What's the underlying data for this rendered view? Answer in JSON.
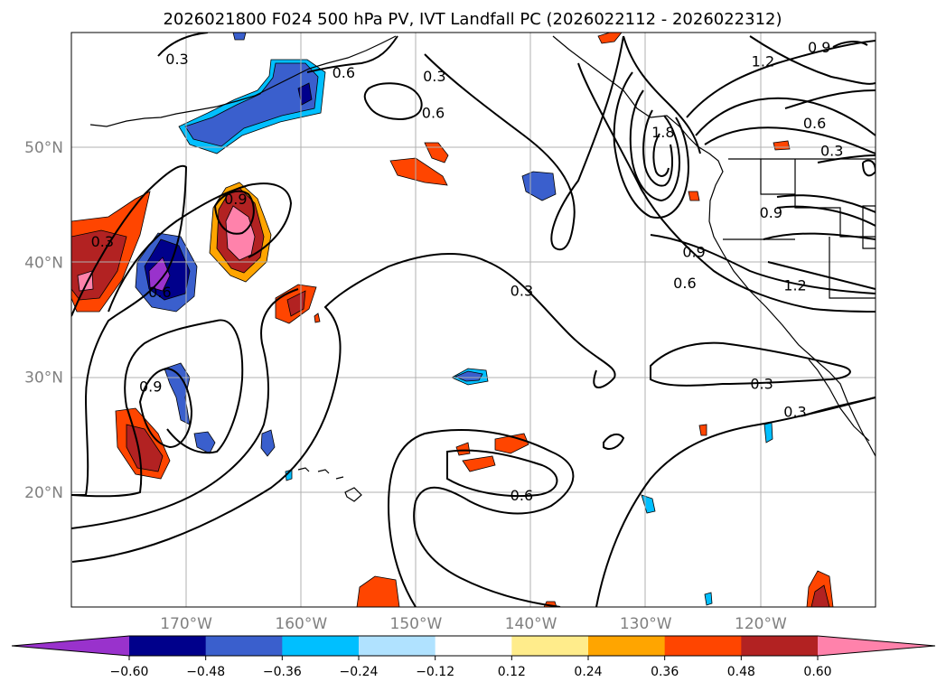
{
  "chart_data": {
    "type": "contour-map",
    "title": "2026021800 F024 500 hPa PV, IVT Landfall PC (2026022112 - 2026022312)",
    "xlim": [
      -180,
      -110
    ],
    "ylim": [
      10,
      60
    ],
    "x_ticks": [
      -170,
      -160,
      -150,
      -140,
      -130,
      -120
    ],
    "x_tick_labels": [
      "170°W",
      "160°W",
      "150°W",
      "140°W",
      "130°W",
      "120°W"
    ],
    "y_ticks": [
      20,
      30,
      40,
      50
    ],
    "y_tick_labels": [
      "20°N",
      "30°N",
      "40°N",
      "50°N"
    ],
    "grid": true,
    "contour_labels": [
      {
        "text": "0.3",
        "lon": -170.8,
        "lat": 57.7
      },
      {
        "text": "0.6",
        "lon": -156.3,
        "lat": 56.5
      },
      {
        "text": "0.3",
        "lon": -148.4,
        "lat": 56.2
      },
      {
        "text": "0.6",
        "lon": -148.5,
        "lat": 53.0
      },
      {
        "text": "1.8",
        "lon": -128.5,
        "lat": 51.3
      },
      {
        "text": "1.2",
        "lon": -119.8,
        "lat": 57.5
      },
      {
        "text": "0.9",
        "lon": -114.9,
        "lat": 58.7
      },
      {
        "text": "0.6",
        "lon": -115.3,
        "lat": 52.1
      },
      {
        "text": "0.3",
        "lon": -113.8,
        "lat": 49.7
      },
      {
        "text": "0.9",
        "lon": -119.1,
        "lat": 44.3
      },
      {
        "text": "0.9",
        "lon": -125.8,
        "lat": 40.9
      },
      {
        "text": "0.6",
        "lon": -126.6,
        "lat": 38.2
      },
      {
        "text": "1.2",
        "lon": -117.0,
        "lat": 38.0
      },
      {
        "text": "0.3",
        "lon": -140.8,
        "lat": 37.5
      },
      {
        "text": "0.3",
        "lon": -119.9,
        "lat": 29.4
      },
      {
        "text": "0.3",
        "lon": -117.0,
        "lat": 27.0
      },
      {
        "text": "0.6",
        "lon": -140.8,
        "lat": 19.7
      },
      {
        "text": "0.9",
        "lon": -165.7,
        "lat": 45.5
      },
      {
        "text": "0.3",
        "lon": -177.3,
        "lat": 41.8
      },
      {
        "text": "0.6",
        "lon": -172.3,
        "lat": 37.4
      },
      {
        "text": "0.9",
        "lon": -173.1,
        "lat": 29.2
      }
    ],
    "colorbar": {
      "orientation": "horizontal",
      "extend": "both",
      "levels": [
        -0.6,
        -0.48,
        -0.36,
        -0.24,
        -0.12,
        0.12,
        0.24,
        0.36,
        0.48,
        0.6
      ],
      "tick_labels": [
        "−0.60",
        "−0.48",
        "−0.36",
        "−0.24",
        "−0.12",
        "0.12",
        "0.24",
        "0.36",
        "0.48",
        "0.60"
      ],
      "colors": [
        "#9932cc",
        "#00008b",
        "#3a5fcd",
        "#00bfff",
        "#b0e2ff",
        "#ffffff",
        "#ffec8b",
        "#ffa500",
        "#ff4500",
        "#b22222",
        "#ff82ab"
      ]
    },
    "shaded_regions": [
      {
        "sign": "positive",
        "peak": 0.6,
        "lon": -165.5,
        "lat": 43.5
      },
      {
        "sign": "positive",
        "peak": 0.6,
        "lon": -178.5,
        "lat": 39.0
      },
      {
        "sign": "positive",
        "peak": 0.48,
        "lon": -172.3,
        "lat": 24.5
      },
      {
        "sign": "positive",
        "peak": 0.48,
        "lon": -158.8,
        "lat": 37.3
      },
      {
        "sign": "positive",
        "peak": 0.36,
        "lon": -150.5,
        "lat": 48.0
      },
      {
        "sign": "positive",
        "peak": 0.36,
        "lon": -148.5,
        "lat": 50.0
      },
      {
        "sign": "positive",
        "peak": 0.36,
        "lon": -141.5,
        "lat": 24.3
      },
      {
        "sign": "positive",
        "peak": 0.36,
        "lon": -144.5,
        "lat": 22.5
      },
      {
        "sign": "positive",
        "peak": 0.36,
        "lon": -152.0,
        "lat": 11.2
      },
      {
        "sign": "positive",
        "peak": 0.48,
        "lon": -115.2,
        "lat": 11.5
      },
      {
        "sign": "negative",
        "peak": -0.6,
        "lon": -172.0,
        "lat": 39.5
      },
      {
        "sign": "negative",
        "peak": -0.48,
        "lon": -159.5,
        "lat": 55.5
      },
      {
        "sign": "negative",
        "peak": -0.36,
        "lon": -165.0,
        "lat": 53.0
      },
      {
        "sign": "negative",
        "peak": -0.36,
        "lon": -139.5,
        "lat": 47.2
      },
      {
        "sign": "negative",
        "peak": -0.36,
        "lon": -145.0,
        "lat": 30.0
      },
      {
        "sign": "negative",
        "peak": -0.36,
        "lon": -170.2,
        "lat": 28.5
      },
      {
        "sign": "negative",
        "peak": -0.36,
        "lon": -168.3,
        "lat": 24.5
      }
    ]
  }
}
